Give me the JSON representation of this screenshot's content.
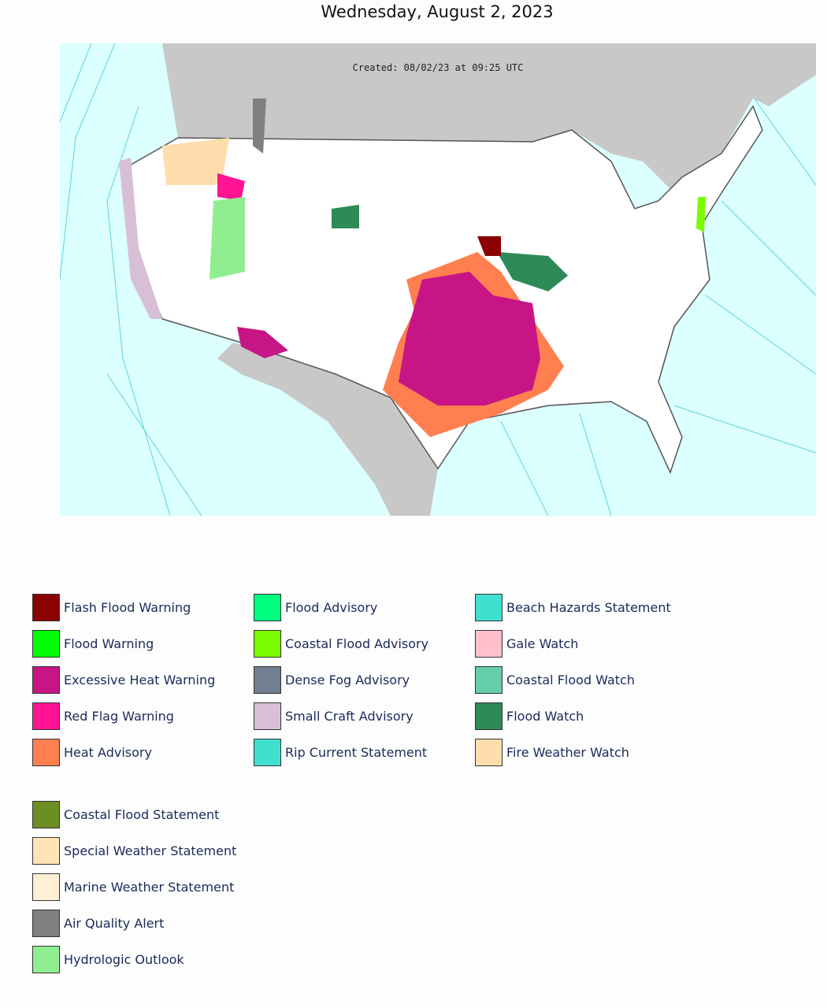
{
  "header": {
    "title": "Wednesday, August 2, 2023"
  },
  "map": {
    "created": "Created: 08/02/23 at 09:25 UTC"
  },
  "legend": {
    "main": [
      {
        "label": "Flash Flood Warning",
        "color": "#8b0000"
      },
      {
        "label": "Flood Warning",
        "color": "#00ff00"
      },
      {
        "label": "Excessive Heat Warning",
        "color": "#c71585"
      },
      {
        "label": "Red Flag Warning",
        "color": "#ff1493"
      },
      {
        "label": "Heat Advisory",
        "color": "#ff7f50"
      },
      {
        "label": "Flood Advisory",
        "color": "#00ff7f"
      },
      {
        "label": "Coastal Flood Advisory",
        "color": "#7cfc00"
      },
      {
        "label": "Dense Fog Advisory",
        "color": "#708090"
      },
      {
        "label": "Small Craft Advisory",
        "color": "#d8bfd8"
      },
      {
        "label": "Rip Current Statement",
        "color": "#40e0d0"
      },
      {
        "label": "Beach Hazards Statement",
        "color": "#40e0d0"
      },
      {
        "label": "Gale Watch",
        "color": "#ffc0cb"
      },
      {
        "label": "Coastal Flood Watch",
        "color": "#66cdaa"
      },
      {
        "label": "Flood Watch",
        "color": "#2e8b57"
      },
      {
        "label": "Fire Weather Watch",
        "color": "#ffdead"
      }
    ],
    "extra": [
      {
        "label": "Coastal Flood Statement",
        "color": "#6b8e23"
      },
      {
        "label": "Special Weather Statement",
        "color": "#ffe4b5"
      },
      {
        "label": "Marine Weather Statement",
        "color": "#ffefd5"
      },
      {
        "label": "Air Quality Alert",
        "color": "#808080"
      },
      {
        "label": "Hydrologic Outlook",
        "color": "#90ee90"
      }
    ]
  }
}
